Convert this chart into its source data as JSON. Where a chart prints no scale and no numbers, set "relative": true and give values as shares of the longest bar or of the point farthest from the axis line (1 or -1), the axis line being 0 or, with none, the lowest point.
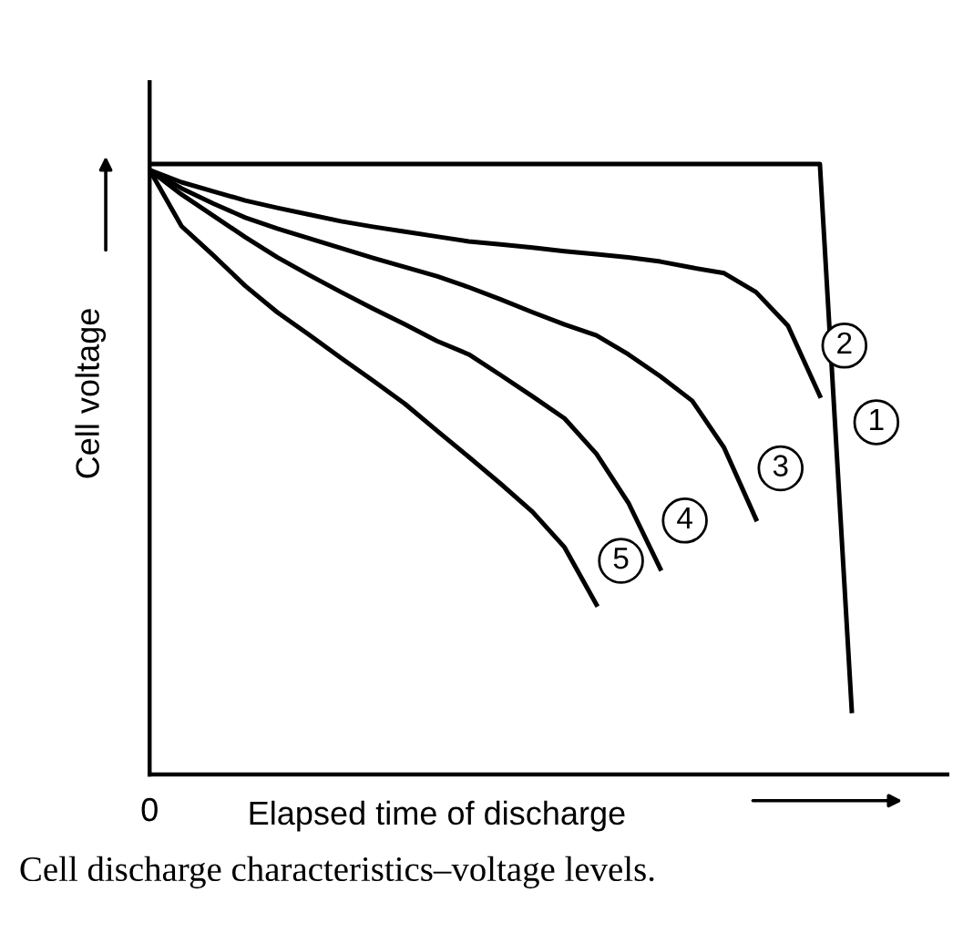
{
  "chart_data": {
    "type": "line",
    "relative": true,
    "xlabel": "Elapsed time of discharge",
    "ylabel": "Cell voltage",
    "legend": false,
    "marker": "none",
    "line_style": "solid",
    "annotations": [
      "0",
      "Cell discharge characteristics–voltage levels."
    ],
    "categories": [
      null,
      null,
      null,
      null,
      null,
      null,
      null,
      null,
      null,
      null,
      null,
      null,
      null,
      null,
      null,
      null,
      null,
      null,
      null,
      null,
      null,
      null,
      null
    ],
    "series": [
      {
        "name": "1",
        "color": "#000000",
        "values": [
          1.0,
          1.0,
          1.0,
          1.0,
          1.0,
          1.0,
          1.0,
          1.0,
          1.0,
          1.0,
          1.0,
          1.0,
          1.0,
          1.0,
          1.0,
          1.0,
          1.0,
          1.0,
          1.0,
          1.0,
          1.0,
          1.0,
          0.104
        ]
      },
      {
        "name": "2",
        "color": "#000000",
        "values": [
          0.99,
          0.97,
          0.955,
          0.94,
          0.928,
          0.917,
          0.906,
          0.897,
          0.889,
          0.881,
          0.873,
          0.868,
          0.863,
          0.857,
          0.852,
          0.847,
          0.84,
          0.83,
          0.821,
          0.79,
          0.735,
          0.62,
          null
        ]
      },
      {
        "name": "3",
        "color": "#000000",
        "values": [
          0.99,
          0.96,
          0.935,
          0.912,
          0.894,
          0.878,
          0.862,
          0.846,
          0.831,
          0.816,
          0.798,
          0.778,
          0.757,
          0.737,
          0.719,
          0.688,
          0.652,
          0.612,
          0.535,
          0.418,
          null,
          null,
          null
        ]
      },
      {
        "name": "4",
        "color": "#000000",
        "values": [
          0.99,
          0.95,
          0.915,
          0.88,
          0.847,
          0.818,
          0.79,
          0.763,
          0.737,
          0.71,
          0.688,
          0.654,
          0.619,
          0.583,
          0.525,
          0.445,
          0.337,
          null,
          null,
          null,
          null,
          null,
          null
        ]
      },
      {
        "name": "5",
        "color": "#000000",
        "values": [
          0.99,
          0.898,
          0.85,
          0.8,
          0.757,
          0.72,
          0.682,
          0.645,
          0.607,
          0.563,
          0.52,
          0.476,
          0.43,
          0.372,
          0.278,
          null,
          null,
          null,
          null,
          null,
          null,
          null,
          null
        ]
      }
    ]
  }
}
